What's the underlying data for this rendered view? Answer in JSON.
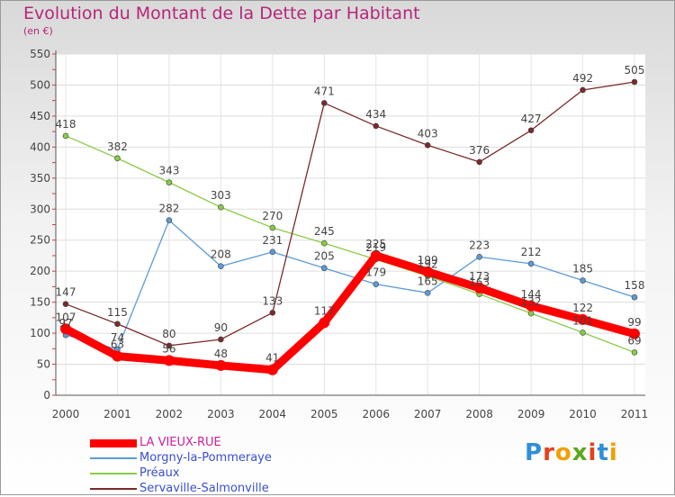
{
  "header": {
    "title": "Evolution du Montant de la Dette par Habitant",
    "subtitle": "(en €)"
  },
  "logo": {
    "letters": [
      "P",
      "r",
      "o",
      "x",
      "i",
      "t",
      "i"
    ],
    "colors": [
      "#2f8fd8",
      "#e8401c",
      "#f0a000",
      "#5aa81e",
      "#e8401c",
      "#2f8fd8",
      "#f0a000"
    ]
  },
  "chart_data": {
    "type": "line",
    "x": [
      "2000",
      "2001",
      "2002",
      "2003",
      "2004",
      "2005",
      "2006",
      "2007",
      "2008",
      "2009",
      "2010",
      "2011"
    ],
    "ylim": [
      0,
      550
    ],
    "yticks": [
      0,
      50,
      100,
      150,
      200,
      250,
      300,
      350,
      400,
      450,
      500,
      550
    ],
    "grid": true,
    "legend_position": "bottom-left",
    "series": [
      {
        "name": "LA VIEUX-RUE",
        "color": "#ff0000",
        "values": [
          107,
          63,
          56,
          48,
          41,
          117,
          225,
          199,
          173,
          144,
          122,
          99
        ],
        "labels": [
          "107",
          "63",
          "56",
          "48",
          "41",
          "117",
          "225",
          "199",
          "173",
          "144",
          "122",
          "99"
        ]
      },
      {
        "name": "Morgny-la-Pommeraye",
        "color": "#5b9bd5",
        "values": [
          97,
          74,
          282,
          208,
          231,
          205,
          179,
          165,
          223,
          212,
          185,
          158
        ],
        "labels": [
          "97",
          "74",
          "282",
          "208",
          "231",
          "205",
          "179",
          "165",
          "223",
          "212",
          "185",
          "158"
        ]
      },
      {
        "name": "Préaux",
        "color": "#88cc44",
        "values": [
          418,
          382,
          343,
          303,
          270,
          245,
          219,
          192,
          163,
          132,
          101,
          69
        ],
        "labels": [
          "418",
          "382",
          "343",
          "303",
          "270",
          "245",
          "219",
          "192",
          "163",
          "132",
          "101",
          "69"
        ]
      },
      {
        "name": "Servaville-Salmonville",
        "color": "#7b2a2a",
        "values": [
          147,
          115,
          80,
          90,
          133,
          471,
          434,
          403,
          376,
          427,
          492,
          505
        ],
        "labels": [
          "147",
          "115",
          "80",
          "90",
          "133",
          "471",
          "434",
          "403",
          "376",
          "427",
          "492",
          "505"
        ]
      }
    ]
  }
}
